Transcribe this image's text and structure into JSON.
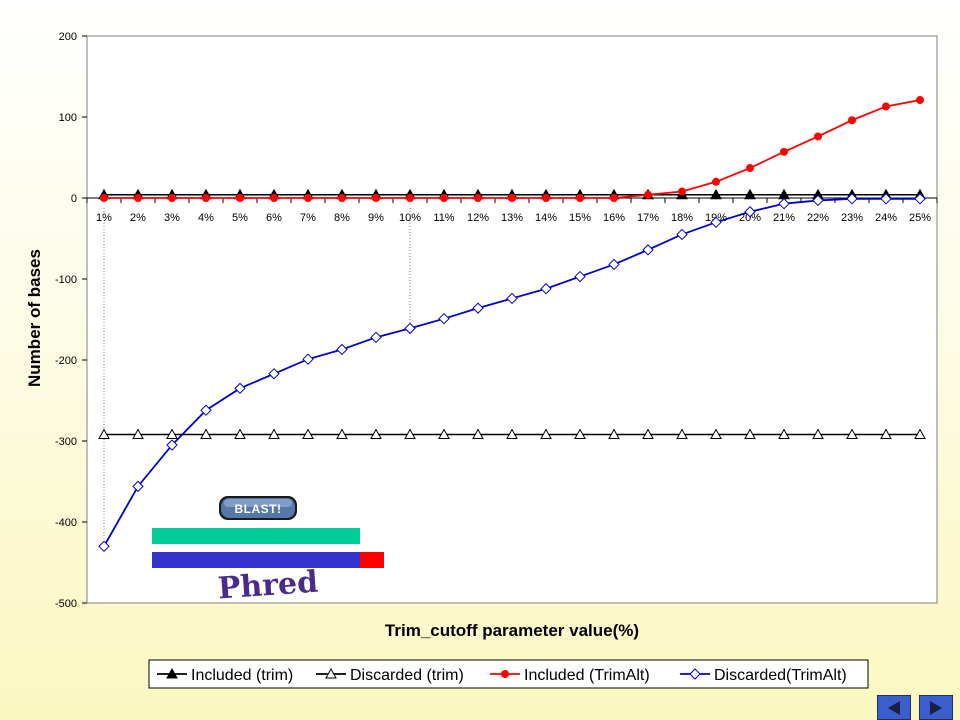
{
  "chart_data": {
    "type": "line",
    "xlabel": "Trim_cutoff parameter value(%)",
    "ylabel": "Number of bases",
    "ylim": [
      -500,
      200
    ],
    "yticks": [
      200,
      100,
      0,
      -100,
      -200,
      -300,
      -400,
      -500
    ],
    "grid": false,
    "legend_position": "bottom",
    "categories": [
      "1%",
      "2%",
      "3%",
      "4%",
      "5%",
      "6%",
      "7%",
      "8%",
      "9%",
      "10%",
      "11%",
      "12%",
      "13%",
      "14%",
      "15%",
      "16%",
      "17%",
      "18%",
      "19%",
      "20%",
      "21%",
      "22%",
      "23%",
      "24%",
      "25%"
    ],
    "series": [
      {
        "name": "Included (trim)",
        "color": "#000000",
        "marker": "filled-triangle",
        "values": [
          4,
          4,
          4,
          4,
          4,
          4,
          4,
          4,
          4,
          4,
          4,
          4,
          4,
          4,
          4,
          4,
          4,
          4,
          4,
          4,
          4,
          4,
          4,
          4,
          4
        ]
      },
      {
        "name": "Discarded (trim)",
        "color": "#000000",
        "marker": "open-triangle",
        "values": [
          -292,
          -292,
          -292,
          -292,
          -292,
          -292,
          -292,
          -292,
          -292,
          -292,
          -292,
          -292,
          -292,
          -292,
          -292,
          -292,
          -292,
          -292,
          -292,
          -292,
          -292,
          -292,
          -292,
          -292,
          -292
        ]
      },
      {
        "name": "Included (TrimAlt)",
        "color": "#ff0000",
        "marker": "filled-circle",
        "values": [
          0,
          0,
          0,
          0,
          0,
          0,
          0,
          0,
          0,
          0,
          0,
          0,
          0,
          0,
          0,
          0,
          4,
          8,
          20,
          37,
          57,
          76,
          96,
          113,
          121
        ]
      },
      {
        "name": "Discarded(TrimAlt)",
        "color": "#0000cc",
        "marker": "open-diamond",
        "values": [
          -430,
          -356,
          -305,
          -262,
          -235,
          -217,
          -199,
          -187,
          -172,
          -161,
          -149,
          -136,
          -124,
          -112,
          -97,
          -82,
          -64,
          -45,
          -30,
          -17,
          -7,
          -3,
          -1,
          -1,
          -1
        ]
      }
    ]
  },
  "overlay": {
    "blast_label": "BLAST!",
    "phred_label": "Phred",
    "colors": {
      "bar_teal": "#00cc99",
      "bar_blue": "#3333cc",
      "bar_red": "#ff0000",
      "blast_bg": "#5577aa"
    }
  },
  "nav": {
    "prev_icon": "left-triangle-icon",
    "next_icon": "right-triangle-icon"
  }
}
